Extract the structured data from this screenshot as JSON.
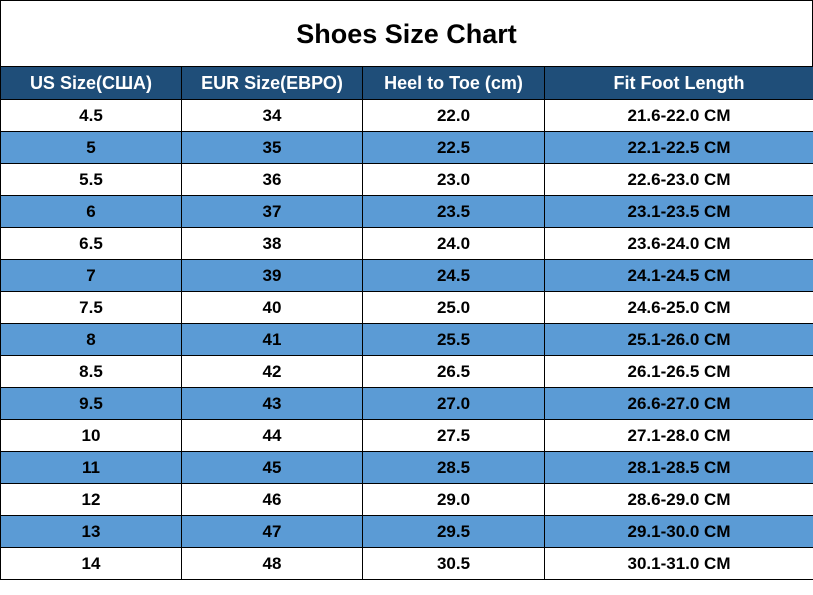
{
  "title": "Shoes Size Chart",
  "table": {
    "headers": [
      "US Size(США)",
      "EUR Size(ЕВРО)",
      "Heel to Toe (cm)",
      "Fit Foot Length"
    ],
    "rows": [
      [
        "4.5",
        "34",
        "22.0",
        "21.6-22.0 CM"
      ],
      [
        "5",
        "35",
        "22.5",
        "22.1-22.5 CM"
      ],
      [
        "5.5",
        "36",
        "23.0",
        "22.6-23.0 CM"
      ],
      [
        "6",
        "37",
        "23.5",
        "23.1-23.5 CM"
      ],
      [
        "6.5",
        "38",
        "24.0",
        "23.6-24.0 CM"
      ],
      [
        "7",
        "39",
        "24.5",
        "24.1-24.5 CM"
      ],
      [
        "7.5",
        "40",
        "25.0",
        "24.6-25.0 CM"
      ],
      [
        "8",
        "41",
        "25.5",
        "25.1-26.0 CM"
      ],
      [
        "8.5",
        "42",
        "26.5",
        "26.1-26.5 CM"
      ],
      [
        "9.5",
        "43",
        "27.0",
        "26.6-27.0 CM"
      ],
      [
        "10",
        "44",
        "27.5",
        "27.1-28.0 CM"
      ],
      [
        "11",
        "45",
        "28.5",
        "28.1-28.5 CM"
      ],
      [
        "12",
        "46",
        "29.0",
        "28.6-29.0 CM"
      ],
      [
        "13",
        "47",
        "29.5",
        "29.1-30.0 CM"
      ],
      [
        "14",
        "48",
        "30.5",
        "30.1-31.0 CM"
      ]
    ]
  }
}
